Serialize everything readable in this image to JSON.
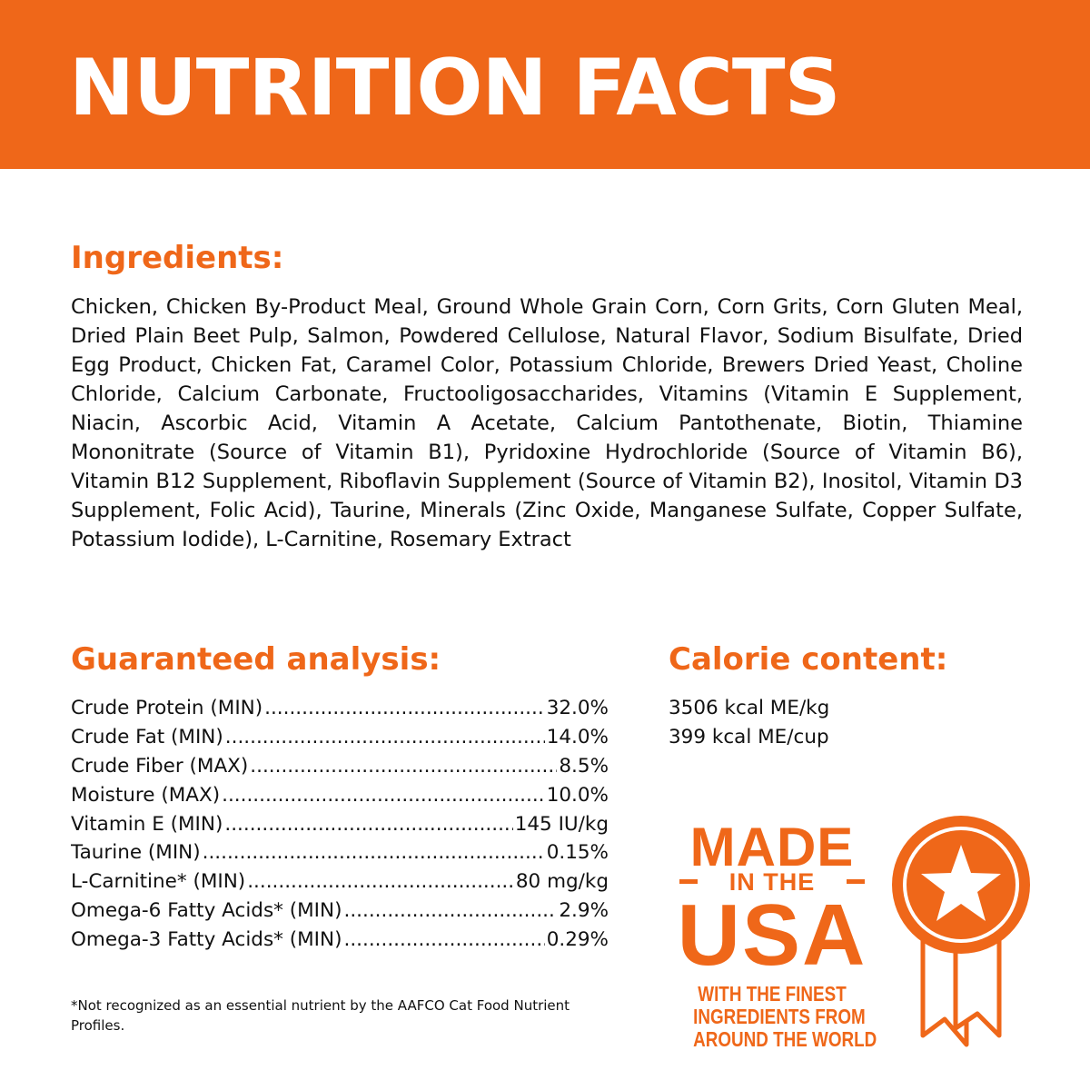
{
  "banner": {
    "title": "NUTRITION FACTS"
  },
  "ingredients": {
    "heading": "Ingredients:",
    "text": "Chicken, Chicken By-Product Meal, Ground Whole Grain Corn, Corn Grits, Corn Gluten Meal, Dried Plain Beet Pulp, Salmon, Powdered Cellulose, Natural Flavor, Sodium Bisulfate, Dried Egg Product, Chicken Fat, Caramel Color, Potassium Chloride, Brewers Dried Yeast, Choline Chloride, Calcium Carbonate, Fructooligosaccharides, Vitamins (Vitamin E Supplement, Niacin, Ascorbic Acid, Vitamin A Acetate, Calcium Pantothenate, Biotin, Thiamine Mononitrate (Source of Vitamin B1), Pyridoxine Hydrochloride (Source of Vitamin B6), Vitamin B12 Supplement, Riboflavin Supplement (Source of Vitamin B2), Inositol, Vitamin D3 Supplement, Folic Acid), Taurine, Minerals (Zinc Oxide, Manganese Sulfate, Copper Sulfate, Potassium Iodide), L-Carnitine, Rosemary Extract"
  },
  "analysis": {
    "heading": "Guaranteed analysis:",
    "rows": [
      {
        "label": "Crude Protein (MIN)",
        "value": "32.0%"
      },
      {
        "label": "Crude Fat (MIN)",
        "value": "14.0%"
      },
      {
        "label": "Crude Fiber (MAX)",
        "value": " 8.5%"
      },
      {
        "label": "Moisture (MAX)",
        "value": "10.0%"
      },
      {
        "label": "Vitamin E (MIN)",
        "value": "145 IU/kg"
      },
      {
        "label": "Taurine (MIN)",
        "value": " 0.15%"
      },
      {
        "label": "L-Carnitine* (MIN)",
        "value": " 80 mg/kg"
      },
      {
        "label": "Omega-6 Fatty Acids* (MIN)",
        "value": "2.9%"
      },
      {
        "label": "Omega-3 Fatty Acids* (MIN)",
        "value": "0.29%"
      }
    ],
    "footnote": "*Not recognized as an essential nutrient by the AAFCO Cat Food Nutrient Profiles."
  },
  "calorie": {
    "heading": "Calorie content:",
    "line1": "3506 kcal ME/kg",
    "line2": "399 kcal ME/cup"
  },
  "badge": {
    "made": "MADE",
    "in_the": "IN THE",
    "usa": "USA",
    "tagline_1": "WITH THE FINEST",
    "tagline_2": "INGREDIENTS FROM",
    "tagline_3": "AROUND THE WORLD",
    "ribbon_icon": "award-ribbon-star-icon"
  },
  "colors": {
    "accent": "#ef6719",
    "text": "#111111",
    "background": "#ffffff"
  }
}
